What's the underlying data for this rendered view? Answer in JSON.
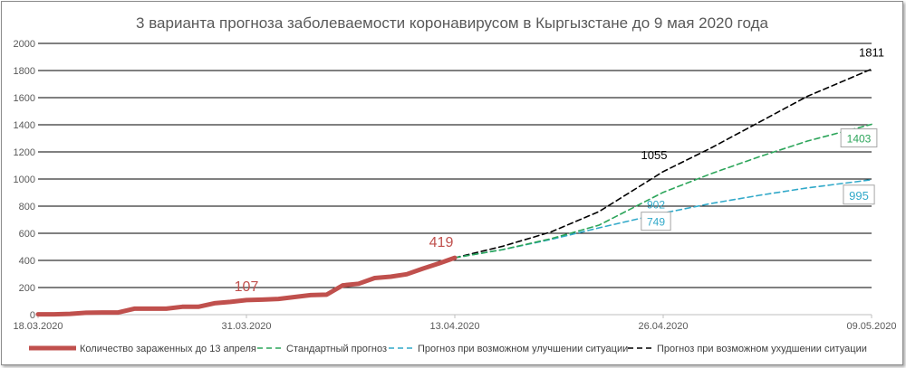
{
  "chart_data": {
    "type": "line",
    "title": "3 варианта прогноза заболеваемости коронавирусом в Кыргызстане до 9 мая 2020 года",
    "xlabel": "",
    "ylabel": "",
    "ylim": [
      0,
      2000
    ],
    "ytick_labels": [
      "0",
      "200",
      "400",
      "600",
      "800",
      "1000",
      "1200",
      "1400",
      "1600",
      "1800",
      "2000"
    ],
    "xlim": [
      "2020-03-18",
      "2020-05-09"
    ],
    "xtick_labels": [
      "18.03.2020",
      "31.03.2020",
      "13.04.2020",
      "26.04.2020",
      "09.05.2020"
    ],
    "xtick_dates": [
      "2020-03-18",
      "2020-03-31",
      "2020-04-13",
      "2020-04-26",
      "2020-05-09"
    ],
    "grid": "horizontal",
    "legend": "bottom",
    "series": [
      {
        "name": "Количество зараженных до 13 апреля",
        "color": "#c0504d",
        "style": "solid",
        "x": [
          "2020-03-18",
          "2020-03-19",
          "2020-03-20",
          "2020-03-21",
          "2020-03-22",
          "2020-03-23",
          "2020-03-24",
          "2020-03-25",
          "2020-03-26",
          "2020-03-27",
          "2020-03-28",
          "2020-03-29",
          "2020-03-30",
          "2020-03-31",
          "2020-04-01",
          "2020-04-02",
          "2020-04-03",
          "2020-04-04",
          "2020-04-05",
          "2020-04-06",
          "2020-04-07",
          "2020-04-08",
          "2020-04-09",
          "2020-04-10",
          "2020-04-11",
          "2020-04-12",
          "2020-04-13"
        ],
        "y": [
          3,
          3,
          6,
          14,
          16,
          16,
          44,
          44,
          44,
          58,
          58,
          84,
          94,
          107,
          111,
          116,
          130,
          144,
          147,
          216,
          228,
          270,
          280,
          298,
          339,
          377,
          419
        ]
      },
      {
        "name": "Стандартный прогноз",
        "color": "#2ca55a",
        "style": "dashed",
        "x": [
          "2020-04-13",
          "2020-04-16",
          "2020-04-19",
          "2020-04-22",
          "2020-04-26",
          "2020-04-29",
          "2020-05-02",
          "2020-05-05",
          "2020-05-09"
        ],
        "y": [
          419,
          480,
          560,
          660,
          902,
          1040,
          1165,
          1280,
          1403
        ]
      },
      {
        "name": "Прогноз при возможном улучшении ситуации",
        "color": "#31a9c9",
        "style": "dashed",
        "x": [
          "2020-04-13",
          "2020-04-16",
          "2020-04-19",
          "2020-04-22",
          "2020-04-26",
          "2020-04-29",
          "2020-05-02",
          "2020-05-05",
          "2020-05-09"
        ],
        "y": [
          419,
          480,
          555,
          640,
          749,
          820,
          880,
          935,
          995
        ]
      },
      {
        "name": "Прогноз при возможном ухудшении ситуации",
        "color": "#000000",
        "style": "dashed",
        "x": [
          "2020-04-13",
          "2020-04-16",
          "2020-04-19",
          "2020-04-22",
          "2020-04-26",
          "2020-04-29",
          "2020-05-02",
          "2020-05-05",
          "2020-05-09"
        ],
        "y": [
          419,
          505,
          610,
          760,
          1055,
          1230,
          1420,
          1610,
          1811
        ]
      }
    ],
    "annotations": [
      {
        "text": "107",
        "x": "2020-03-31",
        "y": 107,
        "color": "#c0504d",
        "boxed": false
      },
      {
        "text": "419",
        "x": "2020-04-13",
        "y": 419,
        "color": "#c0504d",
        "boxed": false
      },
      {
        "text": "1055",
        "x": "2020-04-26",
        "y": 1055,
        "color": "#000000",
        "boxed": false
      },
      {
        "text": "902",
        "x": "2020-04-26",
        "y": 902,
        "color": "#31a9c9",
        "boxed": false
      },
      {
        "text": "749",
        "x": "2020-04-26",
        "y": 749,
        "color": "#31a9c9",
        "boxed": true
      },
      {
        "text": "1811",
        "x": "2020-05-09",
        "y": 1811,
        "color": "#000000",
        "boxed": false
      },
      {
        "text": "1403",
        "x": "2020-05-09",
        "y": 1403,
        "color": "#2ca55a",
        "boxed": true
      },
      {
        "text": "995",
        "x": "2020-05-09",
        "y": 995,
        "color": "#31a9c9",
        "boxed": true
      }
    ]
  }
}
